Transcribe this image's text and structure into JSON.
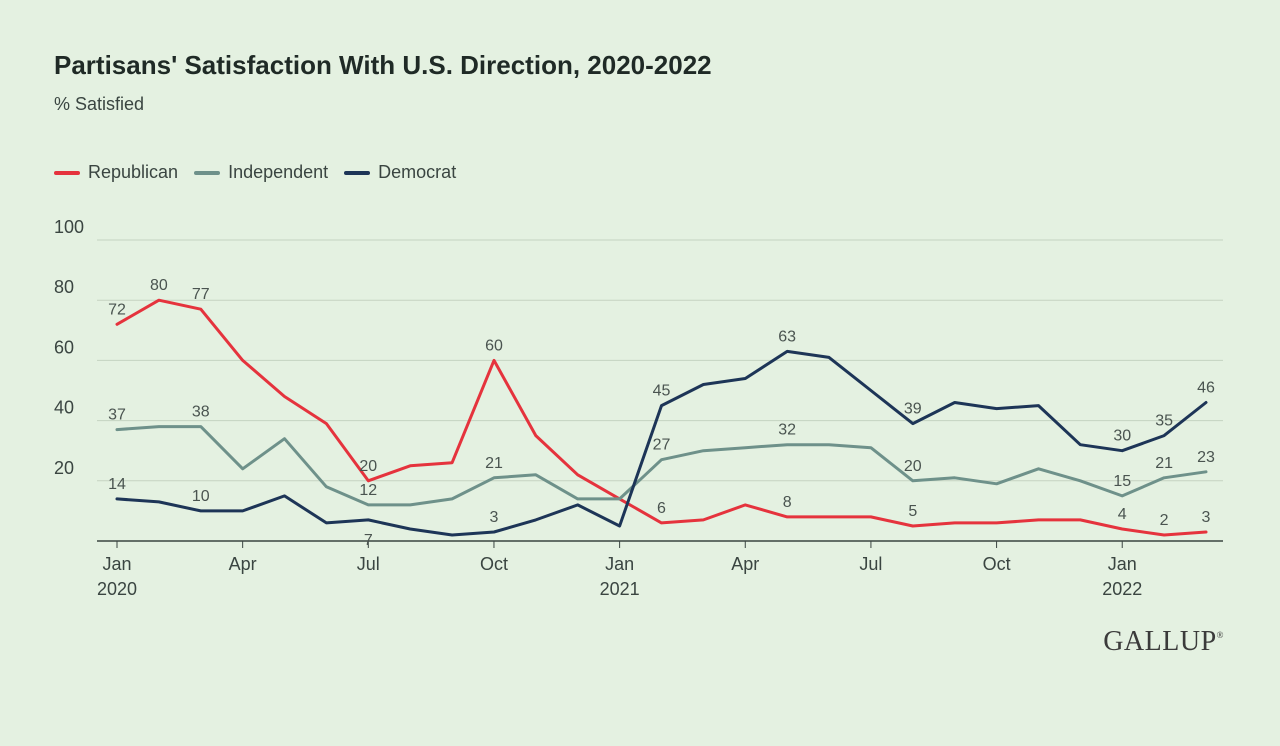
{
  "header": {
    "title": "Partisans' Satisfaction With U.S. Direction, 2020-2022",
    "subtitle": "% Satisfied"
  },
  "logo": {
    "text": "GALLUP",
    "mark": "®"
  },
  "chart_data": {
    "type": "line",
    "title": "Partisans' Satisfaction With U.S. Direction, 2020-2022",
    "subtitle": "% Satisfied",
    "xlabel": "",
    "ylabel": "",
    "ylim": [
      0,
      100
    ],
    "y_ticks": [
      20,
      40,
      60,
      80,
      100
    ],
    "grid": true,
    "legend_position": "top-left",
    "x": [
      "2020-01",
      "2020-02",
      "2020-03",
      "2020-04",
      "2020-05",
      "2020-06",
      "2020-07",
      "2020-08",
      "2020-09",
      "2020-10",
      "2020-11",
      "2020-12",
      "2021-01",
      "2021-02",
      "2021-03",
      "2021-04",
      "2021-05",
      "2021-06",
      "2021-07",
      "2021-08",
      "2021-09",
      "2021-10",
      "2021-11",
      "2021-12",
      "2022-01",
      "2022-02",
      "2022-03"
    ],
    "x_ticks": [
      {
        "index": 0,
        "label": "Jan",
        "year": "2020"
      },
      {
        "index": 3,
        "label": "Apr",
        "year": ""
      },
      {
        "index": 6,
        "label": "Jul",
        "year": ""
      },
      {
        "index": 9,
        "label": "Oct",
        "year": ""
      },
      {
        "index": 12,
        "label": "Jan",
        "year": "2021"
      },
      {
        "index": 15,
        "label": "Apr",
        "year": ""
      },
      {
        "index": 18,
        "label": "Jul",
        "year": ""
      },
      {
        "index": 21,
        "label": "Oct",
        "year": ""
      },
      {
        "index": 24,
        "label": "Jan",
        "year": "2022"
      }
    ],
    "series": [
      {
        "name": "Republican",
        "color": "#e5333d",
        "values": [
          72,
          80,
          77,
          60,
          48,
          39,
          20,
          25,
          26,
          60,
          35,
          22,
          14,
          6,
          7,
          12,
          8,
          8,
          8,
          5,
          6,
          6,
          7,
          7,
          4,
          2,
          3
        ],
        "labels": [
          {
            "index": 0,
            "text": "72",
            "pos": "above"
          },
          {
            "index": 1,
            "text": "80",
            "pos": "above"
          },
          {
            "index": 2,
            "text": "77",
            "pos": "above"
          },
          {
            "index": 6,
            "text": "20",
            "pos": "above"
          },
          {
            "index": 9,
            "text": "60",
            "pos": "above"
          },
          {
            "index": 13,
            "text": "6",
            "pos": "above"
          },
          {
            "index": 16,
            "text": "8",
            "pos": "above"
          },
          {
            "index": 19,
            "text": "5",
            "pos": "above"
          },
          {
            "index": 24,
            "text": "4",
            "pos": "above"
          },
          {
            "index": 25,
            "text": "2",
            "pos": "above"
          },
          {
            "index": 26,
            "text": "3",
            "pos": "above"
          }
        ]
      },
      {
        "name": "Independent",
        "color": "#6e918a",
        "values": [
          37,
          38,
          38,
          24,
          34,
          18,
          12,
          12,
          14,
          21,
          22,
          14,
          14,
          27,
          30,
          31,
          32,
          32,
          31,
          20,
          21,
          19,
          24,
          20,
          15,
          21,
          23
        ],
        "labels": [
          {
            "index": 0,
            "text": "37",
            "pos": "above"
          },
          {
            "index": 2,
            "text": "38",
            "pos": "above"
          },
          {
            "index": 6,
            "text": "12",
            "pos": "above"
          },
          {
            "index": 9,
            "text": "21",
            "pos": "above"
          },
          {
            "index": 13,
            "text": "27",
            "pos": "above"
          },
          {
            "index": 16,
            "text": "32",
            "pos": "above"
          },
          {
            "index": 19,
            "text": "20",
            "pos": "above"
          },
          {
            "index": 24,
            "text": "15",
            "pos": "above"
          },
          {
            "index": 25,
            "text": "21",
            "pos": "above"
          },
          {
            "index": 26,
            "text": "23",
            "pos": "above"
          }
        ]
      },
      {
        "name": "Democrat",
        "color": "#1d3557",
        "values": [
          14,
          13,
          10,
          10,
          15,
          6,
          7,
          4,
          2,
          3,
          7,
          12,
          5,
          45,
          52,
          54,
          63,
          61,
          50,
          39,
          46,
          44,
          45,
          32,
          30,
          35,
          46
        ],
        "labels": [
          {
            "index": 0,
            "text": "14",
            "pos": "above"
          },
          {
            "index": 2,
            "text": "10",
            "pos": "above"
          },
          {
            "index": 6,
            "text": "7",
            "pos": "below"
          },
          {
            "index": 9,
            "text": "3",
            "pos": "above"
          },
          {
            "index": 13,
            "text": "45",
            "pos": "above"
          },
          {
            "index": 16,
            "text": "63",
            "pos": "above"
          },
          {
            "index": 19,
            "text": "39",
            "pos": "above"
          },
          {
            "index": 24,
            "text": "30",
            "pos": "above"
          },
          {
            "index": 25,
            "text": "35",
            "pos": "above"
          },
          {
            "index": 26,
            "text": "46",
            "pos": "above"
          }
        ]
      }
    ]
  }
}
